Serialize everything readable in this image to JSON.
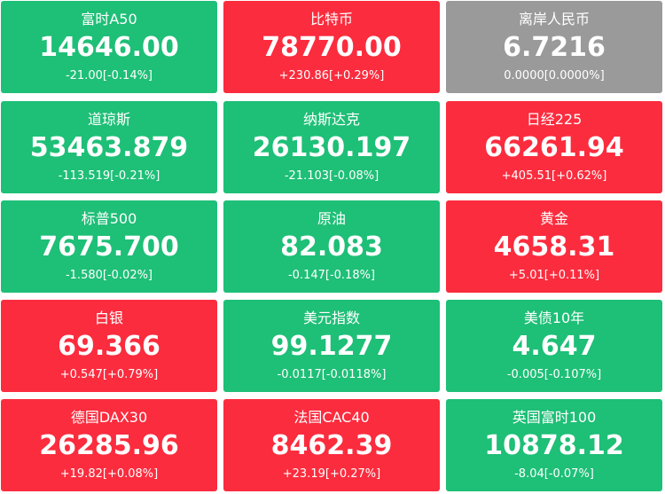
{
  "tiles": [
    {
      "name": "富时A50",
      "price": "14646.00",
      "change": "-21.00[-0.14%]",
      "color": "#1ebf77"
    },
    {
      "name": "比特币",
      "price": "78770.00",
      "change": "+230.86[+0.29%]",
      "color": "#fb2c3e"
    },
    {
      "name": "离岸人民币",
      "price": "6.7216",
      "change": "0.0000[0.0000%]",
      "color": "#9a9a9a"
    },
    {
      "name": "道琼斯",
      "price": "53463.879",
      "change": "-113.519[-0.21%]",
      "color": "#1ebf77"
    },
    {
      "name": "纳斯达克",
      "price": "26130.197",
      "change": "-21.103[-0.08%]",
      "color": "#1ebf77"
    },
    {
      "name": "日经225",
      "price": "66261.94",
      "change": "+405.51[+0.62%]",
      "color": "#fb2c3e"
    },
    {
      "name": "标普500",
      "price": "7675.700",
      "change": "-1.580[-0.02%]",
      "color": "#1ebf77"
    },
    {
      "name": "原油",
      "price": "82.083",
      "change": "-0.147[-0.18%]",
      "color": "#1ebf77"
    },
    {
      "name": "黄金",
      "price": "4658.31",
      "change": "+5.01[+0.11%]",
      "color": "#fb2c3e"
    },
    {
      "name": "白银",
      "price": "69.366",
      "change": "+0.547[+0.79%]",
      "color": "#fb2c3e"
    },
    {
      "name": "美元指数",
      "price": "99.1277",
      "change": "-0.0117[-0.0118%]",
      "color": "#1ebf77"
    },
    {
      "name": "美债10年",
      "price": "4.647",
      "change": "-0.005[-0.107%]",
      "color": "#1ebf77"
    },
    {
      "name": "德国DAX30",
      "price": "26285.96",
      "change": "+19.82[+0.08%]",
      "color": "#fb2c3e"
    },
    {
      "name": "法国CAC40",
      "price": "8462.39",
      "change": "+23.19[+0.27%]",
      "color": "#fb2c3e"
    },
    {
      "name": "英国富时100",
      "price": "10878.12",
      "change": "-8.04[-0.07%]",
      "color": "#1ebf77"
    }
  ]
}
